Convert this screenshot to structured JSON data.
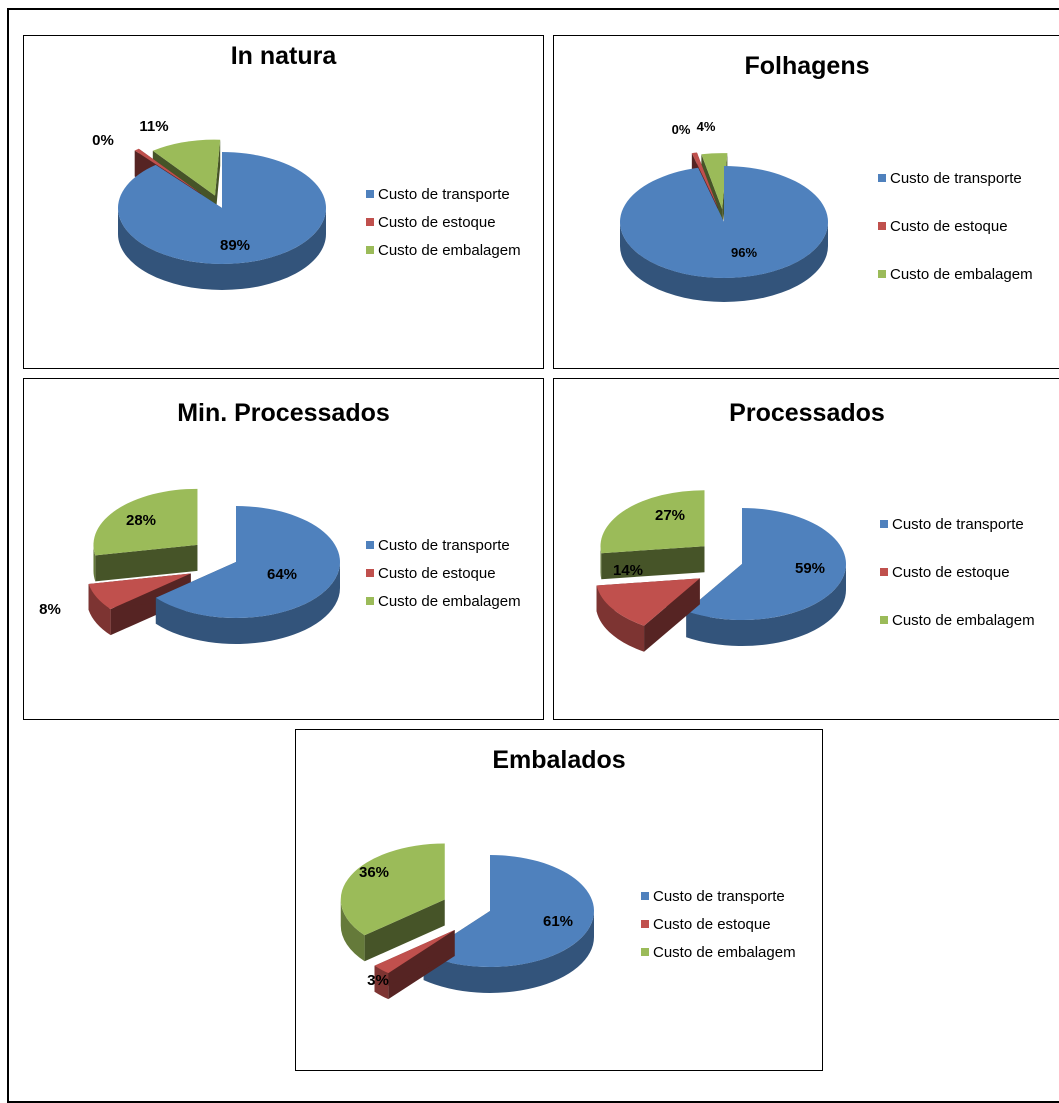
{
  "chart_data": [
    {
      "type": "pie",
      "title": "In natura",
      "categories": [
        "Custo de transporte",
        "Custo de estoque",
        "Custo de embalagem"
      ],
      "values": [
        89,
        0,
        11
      ],
      "labels": [
        "89%",
        "0%",
        "11%"
      ]
    },
    {
      "type": "pie",
      "title": "Folhagens",
      "categories": [
        "Custo de transporte",
        "Custo de estoque",
        "Custo de embalagem"
      ],
      "values": [
        96,
        0,
        4
      ],
      "labels": [
        "96%",
        "0%",
        "4%"
      ]
    },
    {
      "type": "pie",
      "title": "Min. Processados",
      "categories": [
        "Custo de transporte",
        "Custo de estoque",
        "Custo de embalagem"
      ],
      "values": [
        64,
        8,
        28
      ],
      "labels": [
        "64%",
        "8%",
        "28%"
      ]
    },
    {
      "type": "pie",
      "title": "Processados",
      "categories": [
        "Custo de transporte",
        "Custo de estoque",
        "Custo de embalagem"
      ],
      "values": [
        59,
        14,
        27
      ],
      "labels": [
        "59%",
        "14%",
        "27%"
      ]
    },
    {
      "type": "pie",
      "title": "Embalados",
      "categories": [
        "Custo de transporte",
        "Custo de estoque",
        "Custo de embalagem"
      ],
      "values": [
        61,
        3,
        36
      ],
      "labels": [
        "61%",
        "3%",
        "36%"
      ]
    }
  ],
  "colors": {
    "transporte": "#4F81BD",
    "estoque": "#C0504D",
    "embalagem": "#9BBB59"
  }
}
